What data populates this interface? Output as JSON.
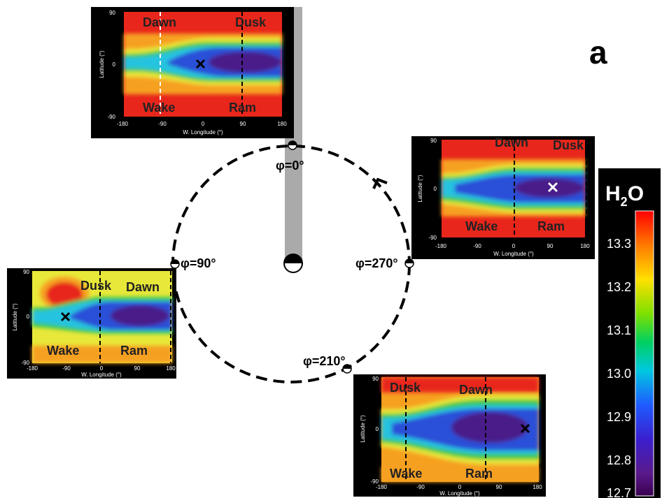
{
  "panel_label": "a",
  "orbit": {
    "phase_labels": [
      "φ=0°",
      "φ=90°",
      "φ=270°",
      "φ=210°"
    ]
  },
  "maps": [
    {
      "id": "phi0",
      "region_labels": [
        "Dawn",
        "Dusk",
        "Wake",
        "Ram"
      ],
      "lat_ticks": [
        "90",
        "0",
        "-90"
      ],
      "lon_ticks": [
        "-180",
        "-90",
        "0",
        "90",
        "180"
      ],
      "ylabel": "Latitude (°)",
      "xlabel": "W. Longitude (°)"
    },
    {
      "id": "phi270",
      "region_labels": [
        "Dawn",
        "Dusk",
        "Wake",
        "Ram"
      ],
      "lat_ticks": [
        "90",
        "0",
        "-90"
      ],
      "lon_ticks": [
        "-180",
        "-90",
        "0",
        "90",
        "180"
      ],
      "ylabel": "Latitude (°)",
      "xlabel": "W. Longitude (°)"
    },
    {
      "id": "phi90",
      "region_labels": [
        "Dusk",
        "Dawn",
        "Wake",
        "Ram"
      ],
      "lat_ticks": [
        "90",
        "0",
        "-90"
      ],
      "lon_ticks": [
        "-180",
        "-90",
        "0",
        "90",
        "180"
      ],
      "ylabel": "Latitude (°)",
      "xlabel": "W. Longitude (°)"
    },
    {
      "id": "phi210",
      "region_labels": [
        "Dusk",
        "Dawn",
        "Wake",
        "Ram"
      ],
      "lat_ticks": [
        "90",
        "0",
        "-90"
      ],
      "lon_ticks": [
        "-180",
        "-90",
        "0",
        "90",
        "180"
      ],
      "ylabel": "Latitude (°)",
      "xlabel": "W. Longitude (°)"
    }
  ],
  "colorbar": {
    "title_main": "H",
    "title_sub": "2",
    "title_end": "O",
    "ticks": [
      "13.3",
      "13.2",
      "13.1",
      "13.0",
      "12.9",
      "12.8",
      "12.7"
    ]
  },
  "colors": {
    "map_red": "#e8261c",
    "map_orange": "#f6a020",
    "map_yellow": "#e8e83a",
    "map_green": "#3ec84a",
    "map_cyan": "#27c3e0",
    "map_blue": "#2c4fd8",
    "map_purple": "#4a1f8a",
    "sun_shadow": "#aaaaaa"
  }
}
